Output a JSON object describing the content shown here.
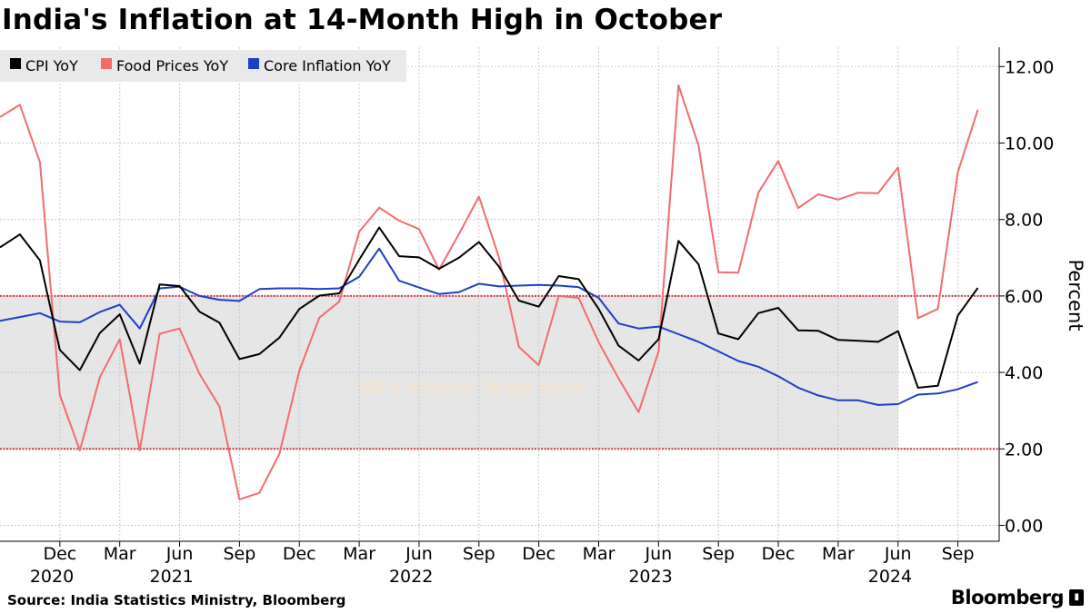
{
  "title": "India's Inflation at 14-Month High in October",
  "source": "Source: India Statistics Ministry, Bloomberg",
  "brand": "Bloomberg",
  "colors": {
    "cpi": "#000000",
    "food": "#f26c6c",
    "core": "#1d3fc4",
    "band_fill": "#e6e6e6",
    "band_edge": "#d1394b",
    "grid": "#c8c8c8"
  },
  "chart_data": {
    "type": "line",
    "title": "India's Inflation at 14-Month High in October",
    "xlabel": "",
    "ylabel": "Percent",
    "ylim": [
      -0.3,
      12.6
    ],
    "yticks": [
      0,
      2,
      4,
      6,
      8,
      10,
      12
    ],
    "ytick_labels": [
      "0.00",
      "2.00",
      "4.00",
      "6.00",
      "8.00",
      "10.00",
      "12.00"
    ],
    "x_start": "2020-09",
    "x_end_index": 49.5,
    "x_ticks": [
      {
        "index": 3,
        "label": "Dec",
        "year": "2020"
      },
      {
        "index": 6,
        "label": "Mar",
        "year": ""
      },
      {
        "index": 9,
        "label": "Jun",
        "year": "2021"
      },
      {
        "index": 12,
        "label": "Sep",
        "year": ""
      },
      {
        "index": 15,
        "label": "Dec",
        "year": ""
      },
      {
        "index": 18,
        "label": "Mar",
        "year": ""
      },
      {
        "index": 21,
        "label": "Jun",
        "year": "2022"
      },
      {
        "index": 24,
        "label": "Sep",
        "year": ""
      },
      {
        "index": 27,
        "label": "Dec",
        "year": ""
      },
      {
        "index": 30,
        "label": "Mar",
        "year": ""
      },
      {
        "index": 33,
        "label": "Jun",
        "year": "2023"
      },
      {
        "index": 36,
        "label": "Sep",
        "year": ""
      },
      {
        "index": 39,
        "label": "Dec",
        "year": ""
      },
      {
        "index": 42,
        "label": "Mar",
        "year": ""
      },
      {
        "index": 45,
        "label": "Jun",
        "year": "2024"
      },
      {
        "index": 48,
        "label": "Sep",
        "year": ""
      }
    ],
    "band": {
      "label": "RBI's Inflation Target Band",
      "low": 2,
      "high": 6,
      "x_end_index": 45
    },
    "series": [
      {
        "name": "CPI YoY",
        "key": "cpi",
        "values": [
          7.27,
          7.61,
          6.93,
          4.59,
          4.06,
          5.03,
          5.52,
          4.23,
          6.3,
          6.26,
          5.59,
          5.3,
          4.35,
          4.48,
          4.91,
          5.66,
          6.01,
          6.07,
          6.95,
          7.79,
          7.04,
          7.01,
          6.71,
          7.0,
          7.41,
          6.77,
          5.88,
          5.72,
          6.52,
          6.44,
          5.66,
          4.7,
          4.31,
          4.87,
          7.44,
          6.83,
          5.02,
          4.87,
          5.55,
          5.69,
          5.1,
          5.09,
          4.85,
          4.83,
          4.8,
          5.08,
          3.6,
          3.65,
          5.49,
          6.21
        ]
      },
      {
        "name": "Food Prices YoY",
        "key": "food",
        "values": [
          10.68,
          11.0,
          9.5,
          3.41,
          1.96,
          3.87,
          4.87,
          1.96,
          5.01,
          5.15,
          3.96,
          3.11,
          0.68,
          0.85,
          1.87,
          4.05,
          5.43,
          5.85,
          7.68,
          8.31,
          7.97,
          7.75,
          6.69,
          7.62,
          8.6,
          7.01,
          4.67,
          4.19,
          6.0,
          5.95,
          4.79,
          3.84,
          2.96,
          4.55,
          11.51,
          9.94,
          6.62,
          6.61,
          8.7,
          9.53,
          8.3,
          8.66,
          8.52,
          8.7,
          8.69,
          9.36,
          5.42,
          5.66,
          9.24,
          10.87
        ]
      },
      {
        "name": "Core Inflation YoY",
        "key": "core",
        "values": [
          5.35,
          5.45,
          5.55,
          5.33,
          5.31,
          5.58,
          5.77,
          5.15,
          6.2,
          6.24,
          6.0,
          5.9,
          5.87,
          6.18,
          6.2,
          6.2,
          6.18,
          6.2,
          6.5,
          7.24,
          6.4,
          6.22,
          6.05,
          6.1,
          6.32,
          6.25,
          6.27,
          6.29,
          6.27,
          6.23,
          5.95,
          5.28,
          5.15,
          5.2,
          5.0,
          4.8,
          4.55,
          4.3,
          4.15,
          3.9,
          3.6,
          3.4,
          3.27,
          3.27,
          3.15,
          3.17,
          3.42,
          3.45,
          3.56,
          3.75
        ]
      }
    ]
  }
}
